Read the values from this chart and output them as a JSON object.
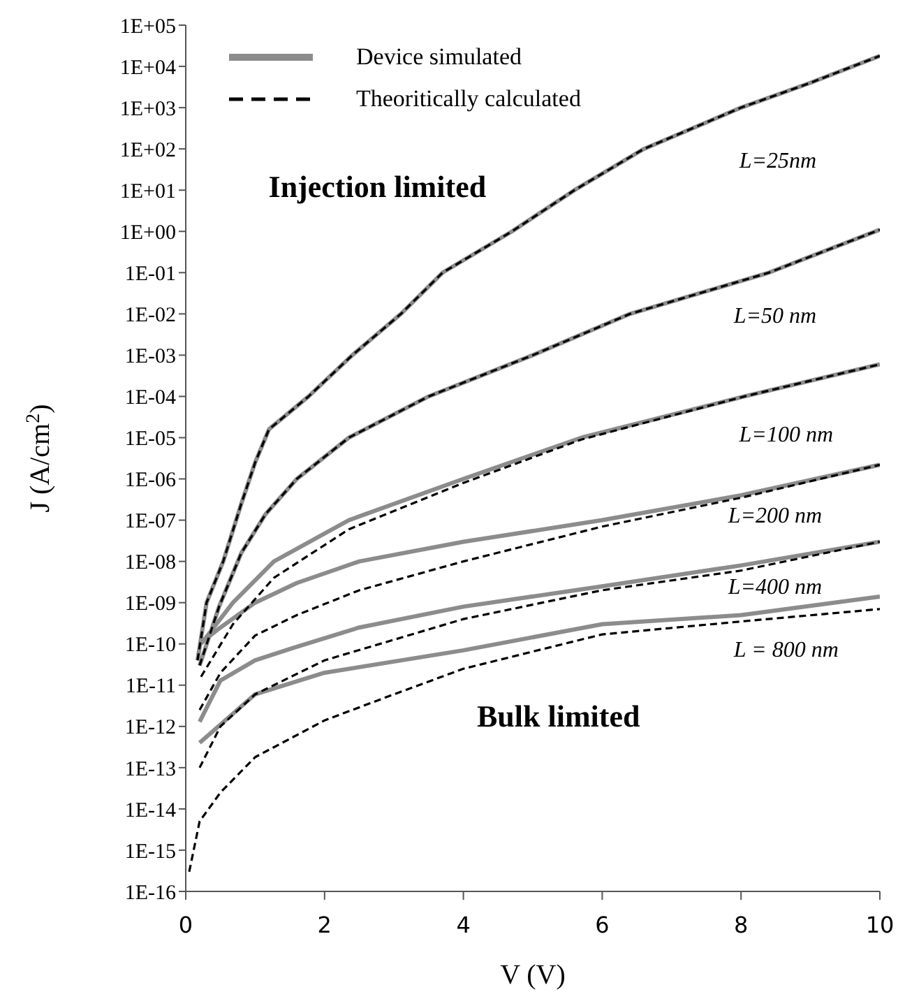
{
  "chart_data": {
    "type": "line",
    "xlabel": "V (V)",
    "ylabel": "J (A/cm$^{2}$)",
    "log": "y",
    "marker": "none",
    "legend": "top left",
    "xlim": [
      0,
      10
    ],
    "xticks": [
      0,
      2,
      4,
      6,
      8,
      10
    ],
    "ylim": [
      1e-16,
      100000
    ],
    "yticks": [
      {
        "value": 100000,
        "label": "1E+05"
      },
      {
        "value": 10000,
        "label": "1E+04"
      },
      {
        "value": 1000,
        "label": "1E+03"
      },
      {
        "value": 100,
        "label": "1E+02"
      },
      {
        "value": 10,
        "label": "1E+01"
      },
      {
        "value": 1,
        "label": "1E+00"
      },
      {
        "value": 0.1,
        "label": "1E-01"
      },
      {
        "value": 0.01,
        "label": "1E-02"
      },
      {
        "value": 0.001,
        "label": "1E-03"
      },
      {
        "value": 0.0001,
        "label": "1E-04"
      },
      {
        "value": 1e-05,
        "label": "1E-05"
      },
      {
        "value": 1e-06,
        "label": "1E-06"
      },
      {
        "value": 1e-07,
        "label": "1E-07"
      },
      {
        "value": 1e-08,
        "label": "1E-08"
      },
      {
        "value": 1e-09,
        "label": "1E-09"
      },
      {
        "value": 1e-10,
        "label": "1E-10"
      },
      {
        "value": 1e-11,
        "label": "1E-11"
      },
      {
        "value": 1e-12,
        "label": "1E-12"
      },
      {
        "value": 1e-13,
        "label": "1E-13"
      },
      {
        "value": 1e-14,
        "label": "1E-14"
      },
      {
        "value": 1e-15,
        "label": "1E-15"
      },
      {
        "value": 1e-16,
        "label": "1E-16"
      }
    ],
    "series": [
      {
        "name": "Device simulated",
        "color": "#8c8c8c",
        "line_style": "solid",
        "x": [
          0.17,
          0.3,
          0.54,
          0.8,
          1.0,
          1.2,
          1.77,
          2.4,
          3.1,
          3.7,
          4.7,
          5.6,
          6.6,
          8,
          9,
          10
        ],
        "values": [
          4e-11,
          1e-09,
          1e-08,
          2.5e-07,
          2.5e-06,
          1.6e-05,
          0.0001,
          0.001,
          0.01,
          0.1,
          1,
          10,
          100,
          1000,
          4000,
          18000
        ]
      },
      {
        "color": "#8c8c8c",
        "line_style": "solid",
        "x": [
          0.2,
          0.48,
          0.8,
          1.15,
          1.6,
          2.35,
          3.5,
          5,
          6.4,
          8.4,
          10
        ],
        "values": [
          3e-11,
          8e-10,
          1.6e-08,
          1.4e-07,
          1e-06,
          1e-05,
          0.0001,
          0.001,
          0.01,
          0.1,
          1.1
        ]
      },
      {
        "color": "#8c8c8c",
        "line_style": "solid",
        "x": [
          0.22,
          0.68,
          1.27,
          2.35,
          4,
          5.7,
          8.05,
          10
        ],
        "values": [
          1e-10,
          1e-09,
          1e-08,
          1e-07,
          1e-06,
          1e-05,
          0.0001,
          0.0006
        ]
      },
      {
        "color": "#8c8c8c",
        "line_style": "solid",
        "x": [
          0.2,
          0.5,
          1,
          1.6,
          2.5,
          4,
          6,
          8,
          10
        ],
        "values": [
          1e-10,
          2.5e-10,
          1e-09,
          3e-09,
          1e-08,
          3e-08,
          1e-07,
          4e-07,
          2.2e-06
        ]
      },
      {
        "color": "#8c8c8c",
        "line_style": "solid",
        "x": [
          0.2,
          0.5,
          1,
          1.55,
          2.5,
          4,
          6,
          8,
          10
        ],
        "values": [
          1.3e-12,
          1.3e-11,
          4e-11,
          8e-11,
          2.5e-10,
          8e-10,
          2.5e-09,
          8e-09,
          3e-08
        ]
      },
      {
        "color": "#8c8c8c",
        "line_style": "solid",
        "x": [
          0.2,
          1,
          2,
          4,
          6,
          8,
          10
        ],
        "values": [
          4e-13,
          6e-12,
          2e-11,
          7e-11,
          3e-10,
          5e-10,
          1.4e-09
        ]
      },
      {
        "name": "Theoritically calculated",
        "color": "#000000",
        "line_style": "dashed",
        "x": [
          0.17,
          0.3,
          0.54,
          0.8,
          1.0,
          1.2,
          1.77,
          2.4,
          3.1,
          3.7,
          4.7,
          5.6,
          6.6,
          8,
          9,
          10
        ],
        "values": [
          4e-11,
          1e-09,
          1e-08,
          2.5e-07,
          2.5e-06,
          1.6e-05,
          0.0001,
          0.001,
          0.01,
          0.1,
          1,
          10,
          100,
          1000,
          4000,
          18000
        ]
      },
      {
        "color": "#000000",
        "line_style": "dashed",
        "x": [
          0.2,
          0.48,
          0.8,
          1.15,
          1.6,
          2.35,
          3.5,
          5,
          6.4,
          8.4,
          10
        ],
        "values": [
          3e-11,
          8e-10,
          1.6e-08,
          1.4e-07,
          1e-06,
          1e-05,
          0.0001,
          0.001,
          0.01,
          0.1,
          1.1
        ]
      },
      {
        "color": "#000000",
        "line_style": "dashed",
        "x": [
          0.22,
          0.68,
          1.27,
          2.35,
          4,
          5.7,
          8.05,
          10
        ],
        "values": [
          1.6e-11,
          3e-10,
          4e-09,
          6e-08,
          8e-07,
          9e-06,
          0.0001,
          0.0006
        ]
      },
      {
        "color": "#000000",
        "line_style": "dashed",
        "x": [
          0.2,
          0.5,
          1,
          1.6,
          2.5,
          4,
          6,
          8,
          10
        ],
        "values": [
          2.5e-12,
          2e-11,
          1.6e-10,
          5e-10,
          2e-09,
          1e-08,
          7e-08,
          3.5e-07,
          2.2e-06
        ]
      },
      {
        "color": "#000000",
        "line_style": "dashed",
        "x": [
          0.2,
          0.5,
          1,
          2,
          4,
          6,
          8,
          10
        ],
        "values": [
          1e-13,
          1e-12,
          6e-12,
          4e-11,
          4e-10,
          2e-09,
          6e-09,
          3e-08
        ]
      },
      {
        "color": "#000000",
        "line_style": "dashed",
        "x": [
          0.05,
          0.2,
          0.5,
          1,
          2,
          3,
          4,
          6,
          8,
          10
        ],
        "values": [
          3e-16,
          5e-15,
          2.5e-14,
          1.8e-13,
          1.4e-12,
          6e-12,
          2.5e-11,
          1.7e-10,
          3.5e-10,
          7e-10
        ]
      }
    ],
    "annotations": [
      "Injection limited",
      "Bulk limited",
      "L=25nm",
      "L=50 nm",
      "L=100 nm",
      "L=200 nm",
      "L=400 nm",
      "L = 800 nm"
    ]
  }
}
